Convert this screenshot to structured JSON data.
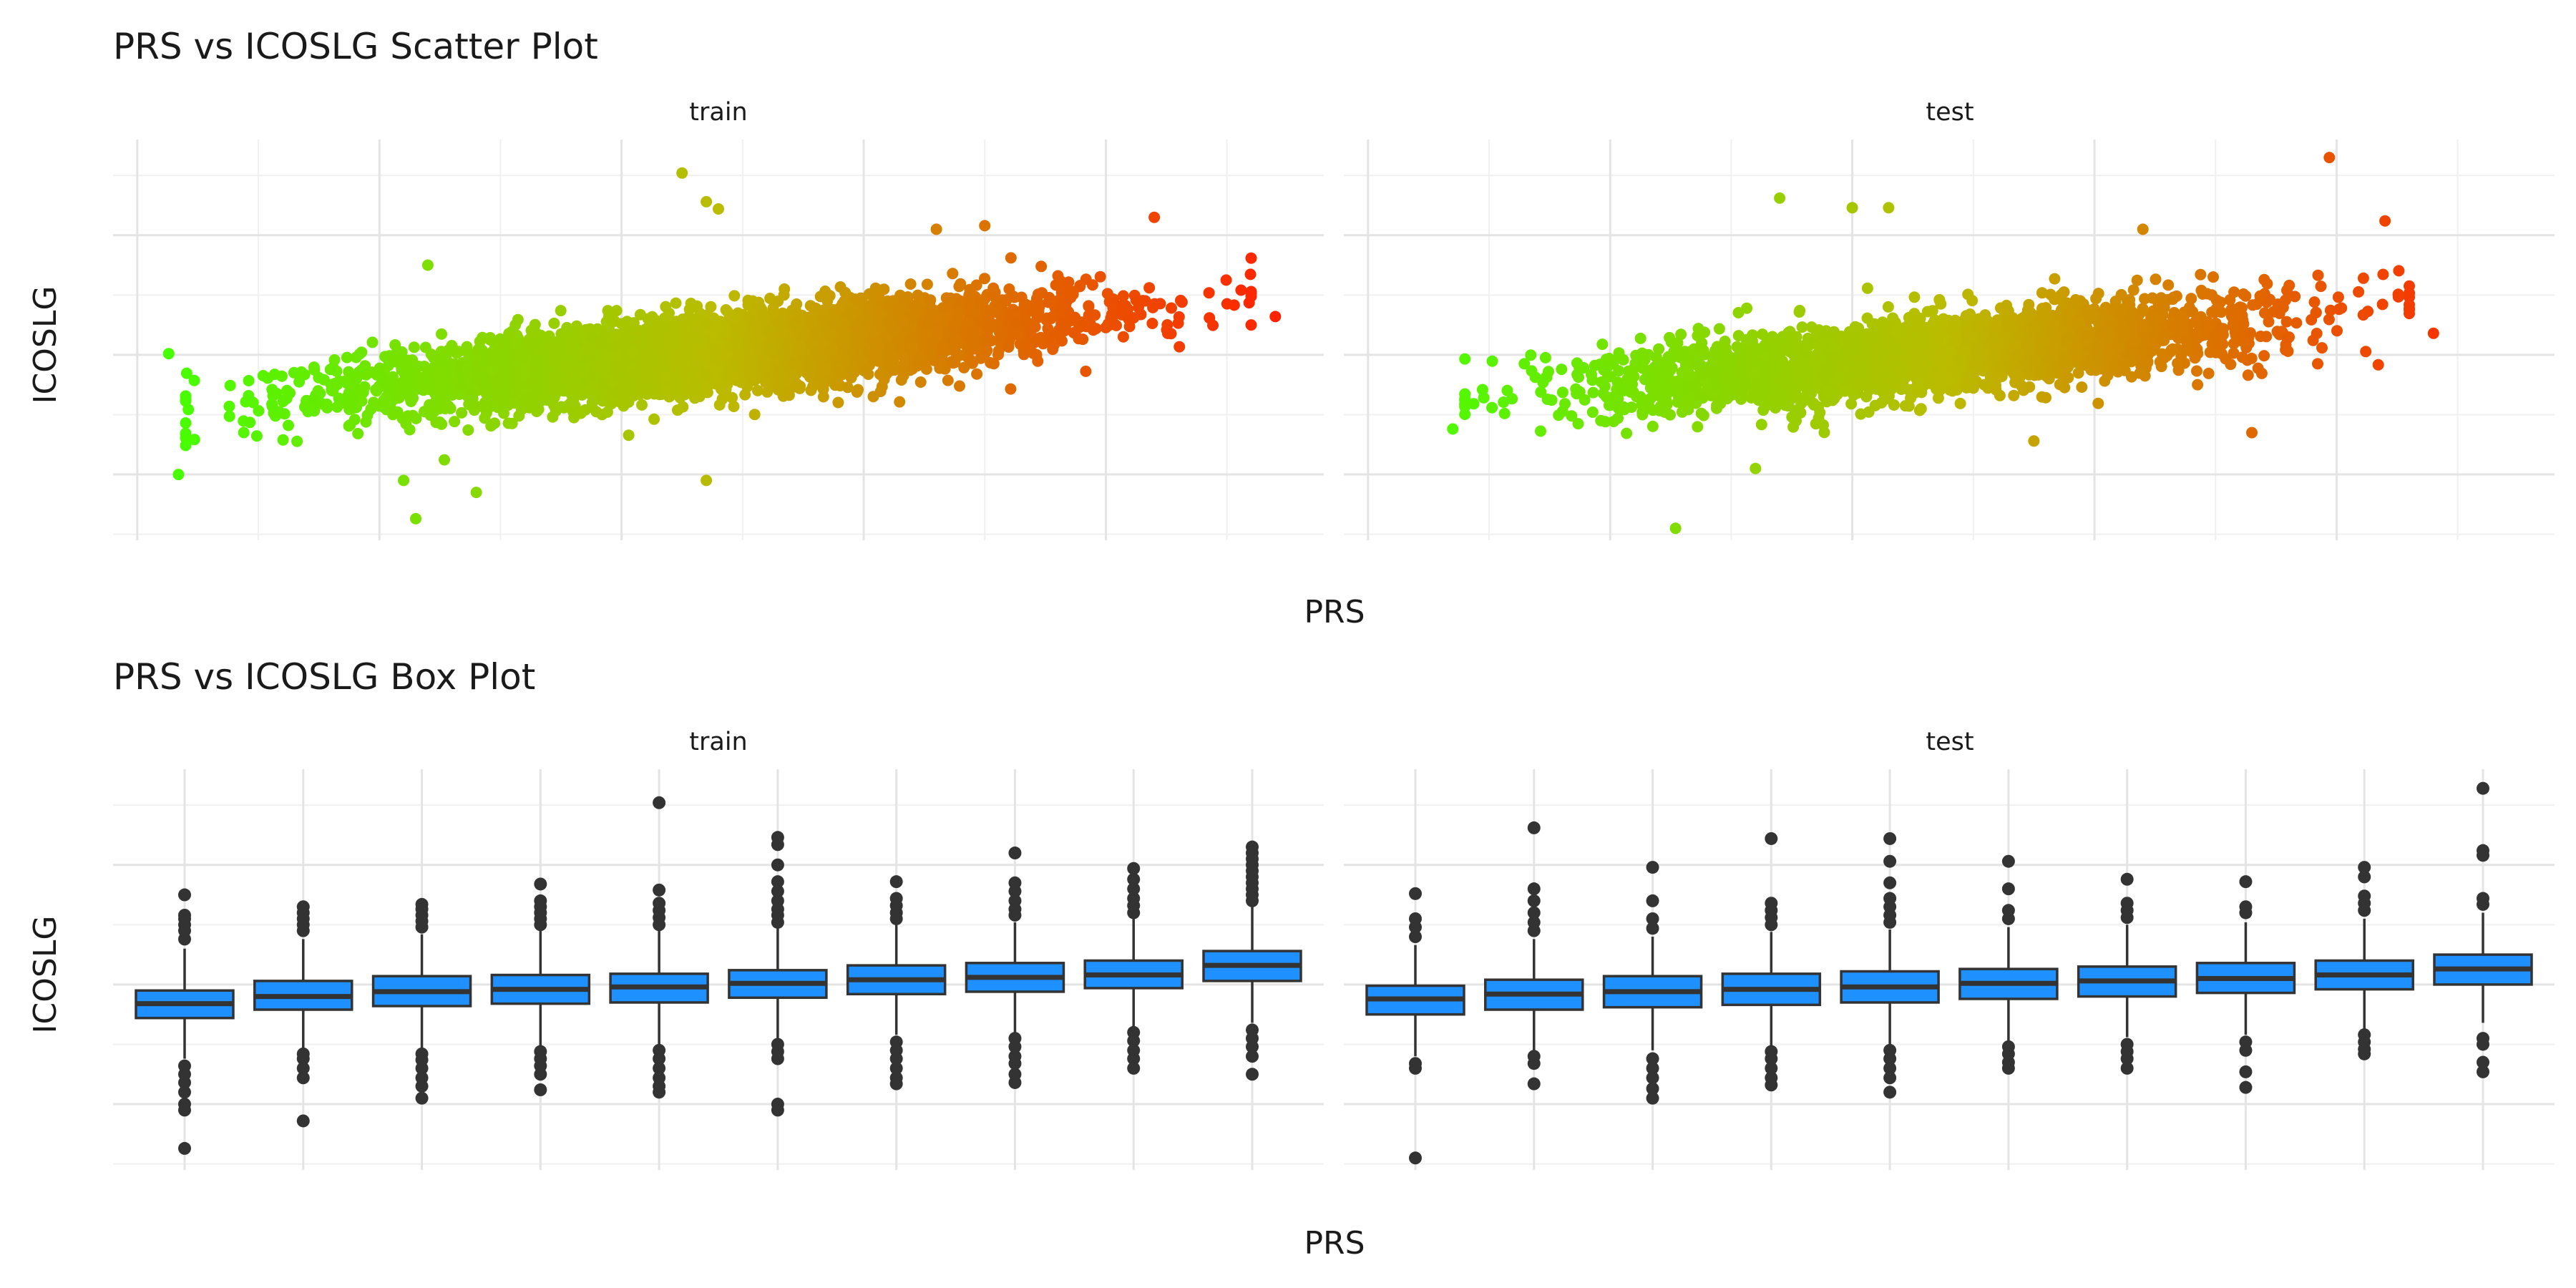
{
  "chart_data": [
    {
      "type": "scatter",
      "title": "PRS vs ICOSLG Scatter Plot",
      "xlabel": "PRS",
      "ylabel": "ICOSLG",
      "facets": [
        "train",
        "test"
      ],
      "xlim": [
        -0.21,
        0.29
      ],
      "ylim": [
        -1.55,
        1.8
      ],
      "x_ticks": [
        "-0.2",
        "-0.1",
        "0.0",
        "0.1",
        "0.2"
      ],
      "y_ticks": [
        "-1",
        "0",
        "1"
      ],
      "color_scale": {
        "low": "#44ff00",
        "mid": "#bbbb00",
        "high": "#ff2200",
        "mapped_to": "PRS"
      },
      "grid": true,
      "legend": "none",
      "relationship": {
        "slope": 2.0,
        "intercept": -0.06,
        "spread_sd": 0.16
      },
      "series": [
        {
          "name": "train",
          "x_range": [
            -0.19,
            0.27
          ],
          "bulk_x_range": [
            -0.15,
            0.23
          ],
          "notable_points": [
            {
              "x": 0.025,
              "y": 1.52
            },
            {
              "x": 0.035,
              "y": 1.28
            },
            {
              "x": 0.04,
              "y": 1.22
            },
            {
              "x": 0.22,
              "y": 1.15
            },
            {
              "x": 0.27,
              "y": 0.32
            },
            {
              "x": 0.26,
              "y": 0.25
            },
            {
              "x": -0.187,
              "y": 0.01
            },
            {
              "x": -0.183,
              "y": -1.0
            },
            {
              "x": -0.085,
              "y": -1.37
            },
            {
              "x": -0.06,
              "y": -1.15
            },
            {
              "x": -0.09,
              "y": -1.05
            },
            {
              "x": 0.035,
              "y": -1.05
            },
            {
              "x": -0.08,
              "y": 0.75
            },
            {
              "x": 0.15,
              "y": 1.08
            },
            {
              "x": 0.13,
              "y": 1.05
            }
          ]
        },
        {
          "name": "test",
          "x_range": [
            -0.17,
            0.24
          ],
          "bulk_x_range": [
            -0.14,
            0.21
          ],
          "notable_points": [
            {
              "x": 0.197,
              "y": 1.65
            },
            {
              "x": -0.03,
              "y": 1.31
            },
            {
              "x": 0.0,
              "y": 1.23
            },
            {
              "x": 0.015,
              "y": 1.23
            },
            {
              "x": 0.22,
              "y": 1.12
            },
            {
              "x": 0.12,
              "y": 1.05
            },
            {
              "x": 0.24,
              "y": 0.18
            },
            {
              "x": -0.073,
              "y": -1.45
            },
            {
              "x": -0.165,
              "y": -0.62
            },
            {
              "x": -0.04,
              "y": -0.95
            },
            {
              "x": 0.075,
              "y": -0.72
            },
            {
              "x": 0.165,
              "y": -0.65
            }
          ]
        }
      ]
    },
    {
      "type": "box",
      "title": "PRS vs ICOSLG Box Plot",
      "xlabel": "PRS",
      "ylabel": "ICOSLG",
      "facets": [
        "train",
        "test"
      ],
      "categories": [
        "1",
        "2",
        "3",
        "4",
        "5",
        "6",
        "7",
        "8",
        "9",
        "10"
      ],
      "ylim": [
        -1.55,
        1.8
      ],
      "y_ticks": [
        "-1",
        "0",
        "1"
      ],
      "box_fill": "#1e90ff",
      "grid": true,
      "series": [
        {
          "name": "train",
          "boxes": [
            {
              "q1": -0.28,
              "median": -0.16,
              "q3": -0.05,
              "whisker_low": -0.62,
              "whisker_high": 0.3,
              "outliers": [
                0.38,
                0.45,
                0.5,
                0.55,
                0.58,
                0.75,
                -0.68,
                -0.75,
                -0.82,
                -0.9,
                -1.0,
                -1.05,
                -1.37
              ]
            },
            {
              "q1": -0.21,
              "median": -0.1,
              "q3": 0.03,
              "whisker_low": -0.55,
              "whisker_high": 0.38,
              "outliers": [
                0.45,
                0.5,
                0.55,
                0.6,
                0.65,
                -0.58,
                -0.62,
                -0.7,
                -0.78,
                -1.14
              ]
            },
            {
              "q1": -0.18,
              "median": -0.06,
              "q3": 0.07,
              "whisker_low": -0.55,
              "whisker_high": 0.42,
              "outliers": [
                0.48,
                0.53,
                0.58,
                0.63,
                0.67,
                -0.58,
                -0.63,
                -0.7,
                -0.78,
                -0.85,
                -0.95
              ]
            },
            {
              "q1": -0.16,
              "median": -0.04,
              "q3": 0.08,
              "whisker_low": -0.52,
              "whisker_high": 0.45,
              "outliers": [
                0.5,
                0.55,
                0.6,
                0.65,
                0.7,
                0.84,
                -0.56,
                -0.62,
                -0.68,
                -0.75,
                -0.88
              ]
            },
            {
              "q1": -0.15,
              "median": -0.02,
              "q3": 0.09,
              "whisker_low": -0.5,
              "whisker_high": 0.45,
              "outliers": [
                0.5,
                0.56,
                0.62,
                0.68,
                0.79,
                1.52,
                -0.55,
                -0.62,
                -0.7,
                -0.78,
                -0.85,
                -0.9
              ]
            },
            {
              "q1": -0.11,
              "median": 0.01,
              "q3": 0.12,
              "whisker_low": -0.45,
              "whisker_high": 0.47,
              "outliers": [
                0.52,
                0.58,
                0.63,
                0.7,
                0.78,
                0.86,
                1.0,
                1.17,
                1.23,
                -0.5,
                -0.56,
                -0.62,
                -1.0,
                -1.05
              ]
            },
            {
              "q1": -0.08,
              "median": 0.04,
              "q3": 0.16,
              "whisker_low": -0.42,
              "whisker_high": 0.5,
              "outliers": [
                0.55,
                0.6,
                0.66,
                0.72,
                0.86,
                -0.48,
                -0.55,
                -0.62,
                -0.7,
                -0.78,
                -0.83
              ]
            },
            {
              "q1": -0.06,
              "median": 0.06,
              "q3": 0.18,
              "whisker_low": -0.4,
              "whisker_high": 0.52,
              "outliers": [
                0.58,
                0.63,
                0.7,
                0.78,
                0.85,
                1.1,
                -0.45,
                -0.52,
                -0.6,
                -0.66,
                -0.75,
                -0.82
              ]
            },
            {
              "q1": -0.03,
              "median": 0.08,
              "q3": 0.2,
              "whisker_low": -0.35,
              "whisker_high": 0.55,
              "outliers": [
                0.6,
                0.66,
                0.72,
                0.8,
                0.88,
                0.97,
                -0.4,
                -0.47,
                -0.55,
                -0.62,
                -0.7
              ]
            },
            {
              "q1": 0.03,
              "median": 0.16,
              "q3": 0.28,
              "whisker_low": -0.32,
              "whisker_high": 0.65,
              "outliers": [
                0.7,
                0.75,
                0.8,
                0.85,
                0.9,
                0.95,
                1.0,
                1.05,
                1.1,
                1.15,
                -0.38,
                -0.45,
                -0.52,
                -0.6,
                -0.75
              ]
            }
          ]
        },
        {
          "name": "test",
          "boxes": [
            {
              "q1": -0.25,
              "median": -0.12,
              "q3": -0.01,
              "whisker_low": -0.6,
              "whisker_high": 0.33,
              "outliers": [
                0.4,
                0.48,
                0.55,
                0.76,
                -0.66,
                -0.7,
                -1.45
              ]
            },
            {
              "q1": -0.21,
              "median": -0.08,
              "q3": 0.04,
              "whisker_low": -0.55,
              "whisker_high": 0.38,
              "outliers": [
                0.45,
                0.52,
                0.6,
                0.7,
                0.8,
                1.31,
                -0.6,
                -0.66,
                -0.83
              ]
            },
            {
              "q1": -0.19,
              "median": -0.06,
              "q3": 0.07,
              "whisker_low": -0.55,
              "whisker_high": 0.4,
              "outliers": [
                0.47,
                0.55,
                0.7,
                0.98,
                -0.62,
                -0.7,
                -0.78,
                -0.87,
                -0.95
              ]
            },
            {
              "q1": -0.17,
              "median": -0.04,
              "q3": 0.09,
              "whisker_low": -0.52,
              "whisker_high": 0.44,
              "outliers": [
                0.5,
                0.56,
                0.62,
                0.68,
                1.22,
                -0.56,
                -0.62,
                -0.7,
                -0.78,
                -0.84
              ]
            },
            {
              "q1": -0.15,
              "median": -0.02,
              "q3": 0.11,
              "whisker_low": -0.5,
              "whisker_high": 0.46,
              "outliers": [
                0.52,
                0.58,
                0.65,
                0.72,
                0.85,
                1.03,
                1.22,
                -0.55,
                -0.62,
                -0.7,
                -0.78,
                -0.9
              ]
            },
            {
              "q1": -0.12,
              "median": 0.01,
              "q3": 0.13,
              "whisker_low": -0.47,
              "whisker_high": 0.48,
              "outliers": [
                0.55,
                0.62,
                0.8,
                1.03,
                -0.52,
                -0.58,
                -0.65,
                -0.7
              ]
            },
            {
              "q1": -0.1,
              "median": 0.03,
              "q3": 0.15,
              "whisker_low": -0.44,
              "whisker_high": 0.5,
              "outliers": [
                0.56,
                0.62,
                0.68,
                0.88,
                -0.5,
                -0.56,
                -0.62,
                -0.7
              ]
            },
            {
              "q1": -0.07,
              "median": 0.05,
              "q3": 0.18,
              "whisker_low": -0.42,
              "whisker_high": 0.52,
              "outliers": [
                0.6,
                0.65,
                0.86,
                -0.48,
                -0.55,
                -0.73,
                -0.86
              ]
            },
            {
              "q1": -0.04,
              "median": 0.08,
              "q3": 0.2,
              "whisker_low": -0.38,
              "whisker_high": 0.55,
              "outliers": [
                0.62,
                0.68,
                0.74,
                0.9,
                0.98,
                -0.42,
                -0.48,
                -0.54,
                -0.58
              ]
            },
            {
              "q1": 0.0,
              "median": 0.13,
              "q3": 0.25,
              "whisker_low": -0.32,
              "whisker_high": 0.6,
              "outliers": [
                0.67,
                0.72,
                1.08,
                1.12,
                1.64,
                -0.45,
                -0.5,
                -0.65,
                -0.73
              ]
            }
          ]
        }
      ]
    }
  ]
}
